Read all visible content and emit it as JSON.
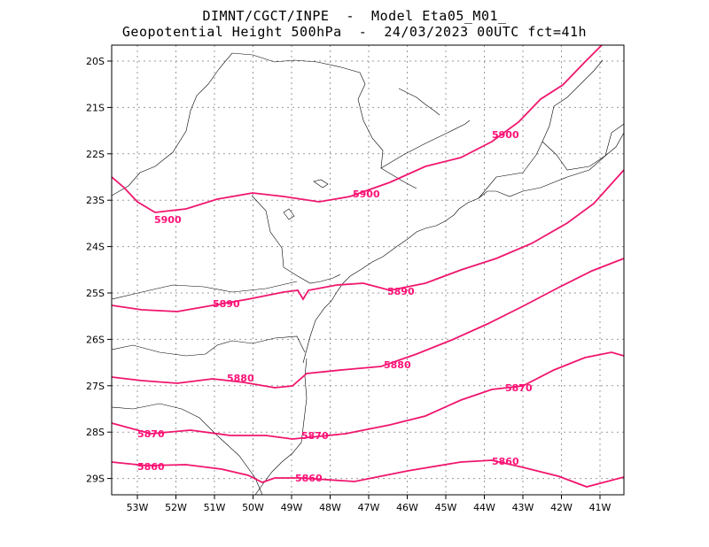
{
  "header": {
    "line1": "DIMNT/CGCT/INPE  -  Model Eta05_M01_",
    "line2": "Geopotential Height 500hPa  -  24/03/2023 00UTC fct=41h"
  },
  "colors": {
    "contour": "#f0166e",
    "coast": "#000000",
    "grid": "#999999"
  },
  "axes": {
    "lat_labels": [
      "20S",
      "21S",
      "22S",
      "23S",
      "24S",
      "25S",
      "26S",
      "27S",
      "28S",
      "29S"
    ],
    "lon_labels": [
      "53W",
      "52W",
      "51W",
      "50W",
      "49W",
      "48W",
      "47W",
      "46W",
      "45W",
      "44W",
      "43W",
      "42W",
      "41W"
    ]
  },
  "contours": [
    {
      "level": 5900,
      "labels": [
        "5900",
        "5900",
        "5900"
      ]
    },
    {
      "level": 5890,
      "labels": [
        "5890",
        "5890"
      ]
    },
    {
      "level": 5880,
      "labels": [
        "5880",
        "5880"
      ]
    },
    {
      "level": 5870,
      "labels": [
        "5870",
        "5870",
        "5870"
      ]
    },
    {
      "level": 5860,
      "labels": [
        "5860",
        "5860",
        "5860"
      ]
    }
  ]
}
